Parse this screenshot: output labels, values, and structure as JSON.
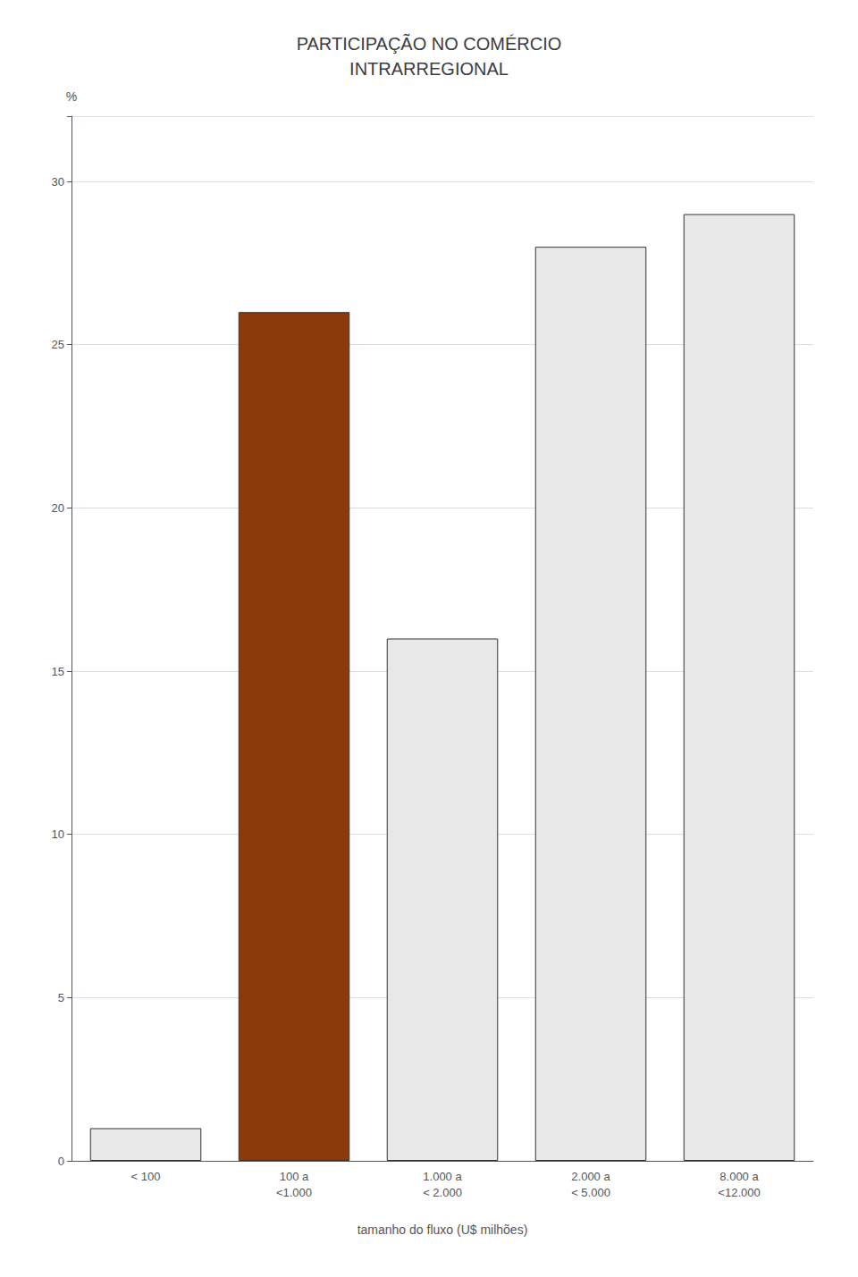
{
  "chart_data": {
    "type": "bar",
    "title": "PARTICIPAÇÃO NO COMÉRCIO\nINTRARREGIONAL",
    "xlabel": "tamanho do fluxo (U$ milhões)",
    "ylabel": "%",
    "categories": [
      "< 100",
      "100 a\n<1.000",
      "1.000 a\n< 2.000",
      "2.000 a\n< 5.000",
      "8.000 a\n<12.000"
    ],
    "values": [
      1,
      26,
      16,
      28,
      29
    ],
    "colors": [
      "#e8e8e8",
      "#8B3A0A",
      "#e8e8e8",
      "#e8e8e8",
      "#e8e8e8"
    ],
    "ylim": [
      0,
      32
    ],
    "yticks": [
      0,
      5,
      10,
      15,
      20,
      25,
      30
    ],
    "grid": true
  }
}
